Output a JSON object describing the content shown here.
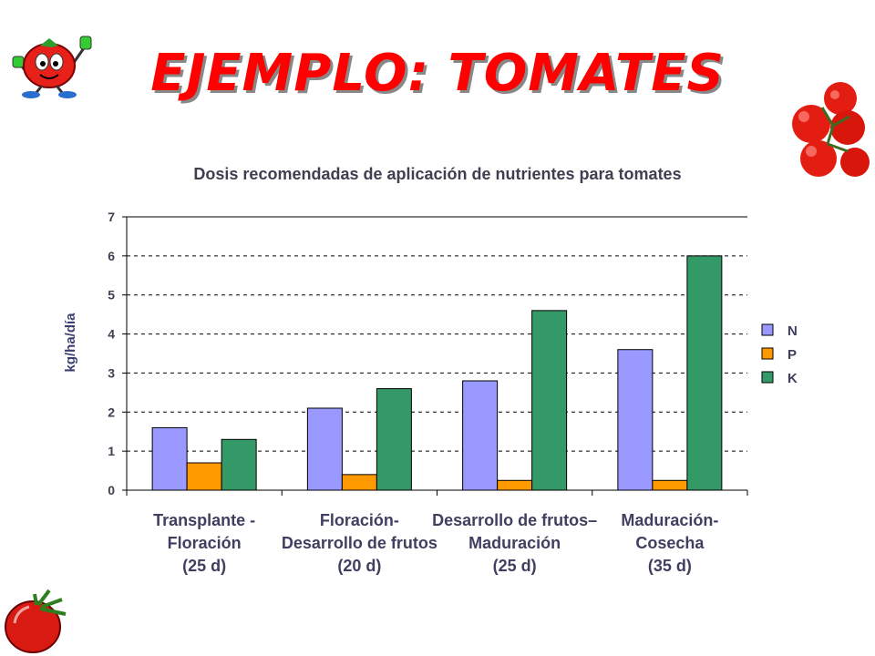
{
  "slide": {
    "title": "EJEMPLO: TOMATES"
  },
  "colors": {
    "N": "#9999ff",
    "P": "#ff9900",
    "K": "#339966",
    "title": "#ff0000"
  },
  "chart_data": {
    "type": "bar",
    "title": "Dosis recomendadas de aplicación de nutrientes para tomates",
    "ylabel": "kg/ha/día",
    "xlabel": "",
    "ylim": [
      0,
      7
    ],
    "yticks": [
      "0",
      "1",
      "2",
      "3",
      "4",
      "5",
      "6",
      "7"
    ],
    "grid": true,
    "legend_position": "right",
    "categories": [
      {
        "lines": [
          "Transplante -",
          "Floración",
          "(25 d)"
        ]
      },
      {
        "lines": [
          "Floración-",
          "Desarrollo de frutos",
          "(20 d)"
        ]
      },
      {
        "lines": [
          "Desarrollo de frutos–",
          "Maduración",
          "(25 d)"
        ]
      },
      {
        "lines": [
          "Maduración-",
          "Cosecha",
          "(35 d)"
        ]
      }
    ],
    "series": [
      {
        "name": "N",
        "values": [
          1.6,
          2.1,
          2.8,
          3.6
        ]
      },
      {
        "name": "P",
        "values": [
          0.7,
          0.4,
          0.25,
          0.25
        ]
      },
      {
        "name": "K",
        "values": [
          1.3,
          2.6,
          4.6,
          6.0
        ]
      }
    ]
  }
}
